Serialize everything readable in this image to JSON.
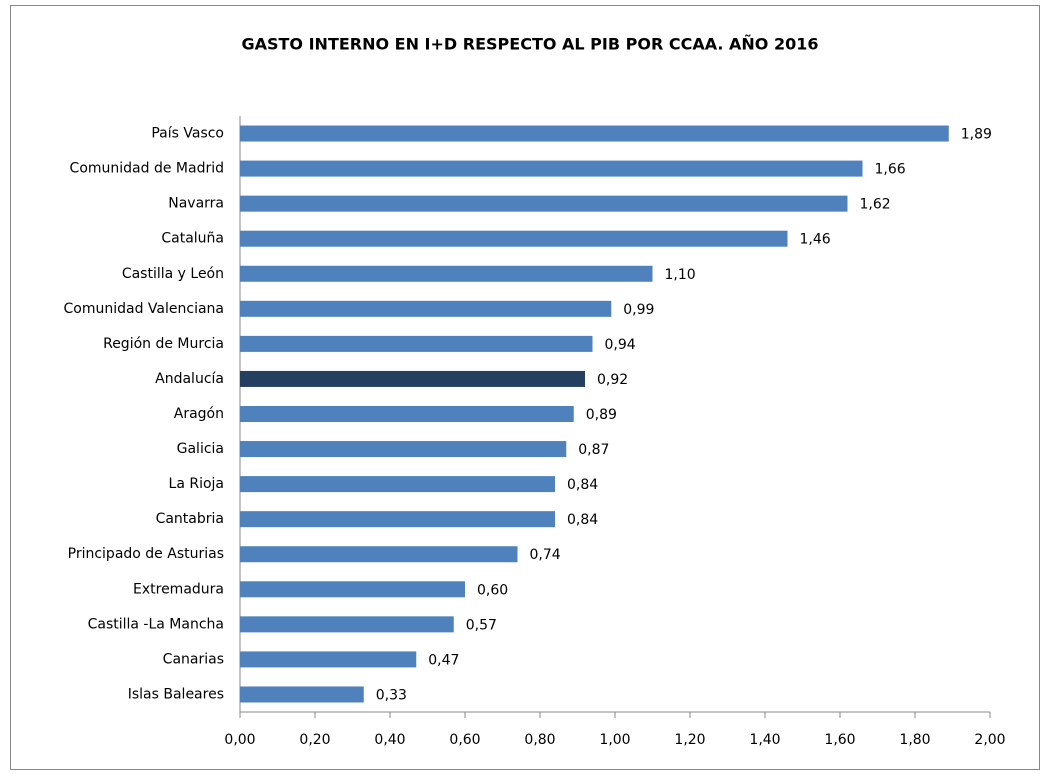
{
  "chart_data": {
    "type": "bar",
    "orientation": "horizontal",
    "title": "GASTO INTERNO EN I+D RESPECTO AL PIB POR CCAA. AÑO 2016",
    "categories": [
      "País Vasco",
      "Comunidad de Madrid",
      "Navarra",
      "Cataluña",
      "Castilla y León",
      "Comunidad Valenciana",
      "Región de Murcia",
      "Andalucía",
      "Aragón",
      "Galicia",
      "La Rioja",
      "Cantabria",
      "Principado de Asturias",
      "Extremadura",
      "Castilla -La Mancha",
      "Canarias",
      "Islas Baleares"
    ],
    "values": [
      1.89,
      1.66,
      1.62,
      1.46,
      1.1,
      0.99,
      0.94,
      0.92,
      0.89,
      0.87,
      0.84,
      0.84,
      0.74,
      0.6,
      0.57,
      0.47,
      0.33
    ],
    "value_labels": [
      "1,89",
      "1,66",
      "1,62",
      "1,46",
      "1,10",
      "0,99",
      "0,94",
      "0,92",
      "0,89",
      "0,87",
      "0,84",
      "0,84",
      "0,74",
      "0,60",
      "0,57",
      "0,47",
      "0,33"
    ],
    "colors": [
      "#4f81bd",
      "#4f81bd",
      "#4f81bd",
      "#4f81bd",
      "#4f81bd",
      "#4f81bd",
      "#4f81bd",
      "#243f60",
      "#4f81bd",
      "#4f81bd",
      "#4f81bd",
      "#4f81bd",
      "#4f81bd",
      "#4f81bd",
      "#4f81bd",
      "#4f81bd",
      "#4f81bd"
    ],
    "xlim": [
      0,
      2
    ],
    "xticks": [
      {
        "value": 0,
        "label": "0,00"
      },
      {
        "value": 0.2,
        "label": "0,20"
      },
      {
        "value": 0.4,
        "label": "0,40"
      },
      {
        "value": 0.6,
        "label": "0,60"
      },
      {
        "value": 0.8,
        "label": "0,80"
      },
      {
        "value": 1.0,
        "label": "1,00"
      },
      {
        "value": 1.2,
        "label": "1,20"
      },
      {
        "value": 1.4,
        "label": "1,40"
      },
      {
        "value": 1.6,
        "label": "1,60"
      },
      {
        "value": 1.8,
        "label": "1,80"
      },
      {
        "value": 2.0,
        "label": "2,00"
      }
    ],
    "grid": false
  }
}
